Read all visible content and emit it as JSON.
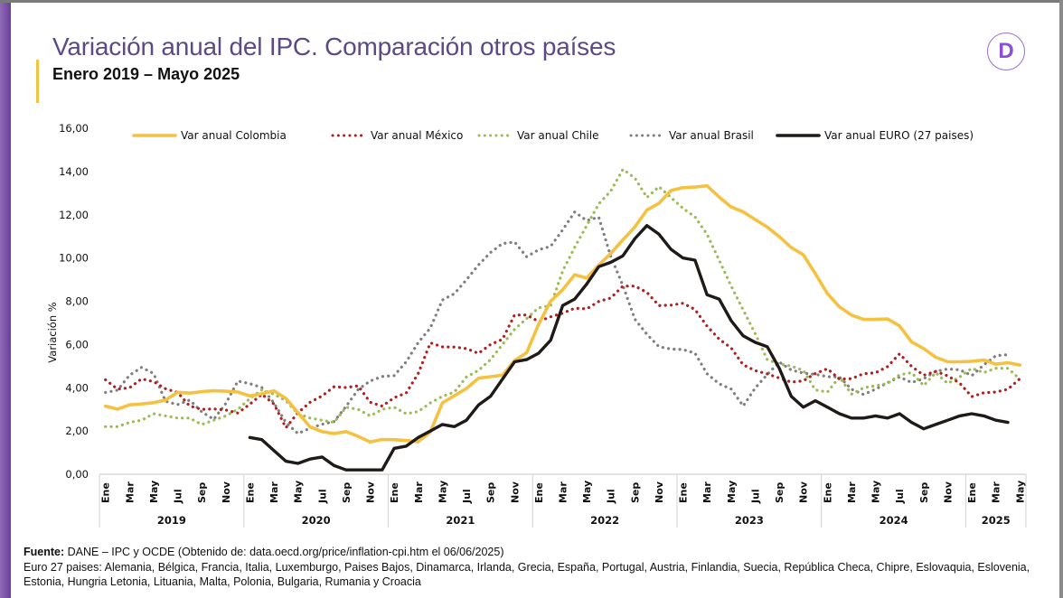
{
  "header": {
    "title": "Variación anual del IPC. Comparación otros países",
    "subtitle": "Enero 2019 – Mayo 2025",
    "logo_icon": "d-logo-icon",
    "logo_letter": "D"
  },
  "footer": {
    "source_label": "Fuente:",
    "source_text": " DANE – IPC y OCDE (Obtenido de: data.oecd.org/price/inflation-cpi.htm el 06/06/2025)",
    "note": "Euro 27 paises: Alemania, Bélgica, Francia, Italia, Luxemburgo, Paises Bajos, Dinamarca, Irlanda, Grecia, España, Portugal, Austria, Finlandia, Suecia, República Checa, Chipre, Eslovaquia, Eslovenia, Estonia, Hungria Letonia, Lituania, Malta, Polonia, Bulgaria, Rumania y Croacia"
  },
  "chart_data": {
    "type": "line",
    "title": "Variación anual del IPC. Comparación otros países",
    "subtitle": "Enero 2019 – Mayo 2025",
    "xlabel": "",
    "ylabel": "Variación %",
    "ylim": [
      0,
      16
    ],
    "yticks": [
      "0,00",
      "2,00",
      "4,00",
      "6,00",
      "8,00",
      "10,00",
      "12,00",
      "14,00",
      "16,00"
    ],
    "grid": false,
    "legend_position": "top",
    "month_tick_labels": [
      "Ene",
      "Mar",
      "May",
      "Jul",
      "Sep",
      "Nov"
    ],
    "years": [
      {
        "label": "2019",
        "months": 12
      },
      {
        "label": "2020",
        "months": 12
      },
      {
        "label": "2021",
        "months": 12
      },
      {
        "label": "2022",
        "months": 12
      },
      {
        "label": "2023",
        "months": 12
      },
      {
        "label": "2024",
        "months": 12
      },
      {
        "label": "2025",
        "months": 5
      }
    ],
    "x_start": "Ene 2019",
    "x_end": "May 2025",
    "series": [
      {
        "name": "Var anual Colombia",
        "color": "#f4c141",
        "style": "solid",
        "start_index": 0,
        "values": [
          3.15,
          3.01,
          3.21,
          3.25,
          3.31,
          3.43,
          3.79,
          3.75,
          3.82,
          3.86,
          3.84,
          3.8,
          3.62,
          3.72,
          3.86,
          3.51,
          2.85,
          2.19,
          1.97,
          1.88,
          1.97,
          1.75,
          1.49,
          1.61,
          1.6,
          1.56,
          1.51,
          1.95,
          3.3,
          3.63,
          3.97,
          4.44,
          4.51,
          4.58,
          5.26,
          5.62,
          6.94,
          8.01,
          8.53,
          9.23,
          9.07,
          9.67,
          10.21,
          10.84,
          11.44,
          12.22,
          12.53,
          13.12,
          13.25,
          13.28,
          13.34,
          12.82,
          12.36,
          12.13,
          11.78,
          11.43,
          10.99,
          10.48,
          10.15,
          9.28,
          8.35,
          7.74,
          7.36,
          7.16,
          7.16,
          7.18,
          6.86,
          6.12,
          5.81,
          5.41,
          5.2,
          5.2,
          5.22,
          5.28,
          5.09,
          5.16,
          5.05
        ]
      },
      {
        "name": "Var anual México",
        "color": "#b0201f",
        "style": "dotted",
        "start_index": 0,
        "values": [
          4.37,
          3.94,
          4.0,
          4.41,
          4.28,
          3.95,
          3.78,
          3.16,
          3.0,
          3.02,
          2.97,
          2.83,
          3.24,
          3.7,
          3.25,
          2.15,
          2.84,
          3.33,
          3.62,
          4.05,
          4.01,
          4.09,
          3.33,
          3.15,
          3.54,
          3.76,
          4.67,
          6.08,
          5.89,
          5.88,
          5.81,
          5.59,
          6.0,
          6.24,
          7.37,
          7.36,
          7.07,
          7.28,
          7.45,
          7.68,
          7.65,
          7.99,
          8.15,
          8.7,
          8.7,
          8.41,
          7.8,
          7.82,
          7.91,
          7.62,
          6.85,
          6.25,
          5.84,
          5.06,
          4.79,
          4.64,
          4.45,
          4.26,
          4.32,
          4.66,
          4.88,
          4.4,
          4.42,
          4.65,
          4.69,
          4.98,
          5.57,
          4.99,
          4.58,
          4.76,
          4.55,
          4.21,
          3.59,
          3.77,
          3.8,
          3.93,
          4.42
        ]
      },
      {
        "name": "Var anual Chile",
        "color": "#9bbb59",
        "style": "dotted",
        "start_index": 0,
        "values": [
          2.2,
          2.2,
          2.4,
          2.5,
          2.8,
          2.7,
          2.6,
          2.6,
          2.3,
          2.5,
          2.7,
          3.0,
          3.5,
          3.9,
          3.7,
          3.4,
          2.8,
          2.6,
          2.5,
          2.4,
          3.1,
          3.0,
          2.7,
          3.0,
          3.1,
          2.8,
          2.9,
          3.3,
          3.6,
          3.8,
          4.5,
          4.8,
          5.3,
          6.0,
          6.7,
          7.2,
          7.7,
          7.8,
          9.4,
          10.5,
          11.5,
          12.5,
          13.1,
          14.1,
          13.7,
          12.8,
          13.3,
          12.8,
          12.3,
          11.9,
          11.1,
          9.9,
          8.7,
          7.6,
          6.5,
          5.3,
          5.1,
          5.0,
          4.8,
          3.9,
          3.8,
          4.5,
          3.7,
          4.0,
          4.1,
          4.2,
          4.6,
          4.7,
          4.1,
          4.7,
          4.2,
          4.5,
          4.9,
          4.7,
          4.9,
          4.9,
          4.4
        ]
      },
      {
        "name": "Var anual Brasil",
        "color": "#7f7f7f",
        "style": "dotted",
        "start_index": 0,
        "values": [
          3.78,
          3.89,
          4.58,
          4.94,
          4.66,
          3.37,
          3.22,
          3.43,
          2.89,
          2.54,
          3.27,
          4.31,
          4.19,
          4.01,
          3.3,
          2.4,
          1.88,
          2.13,
          2.31,
          2.44,
          3.14,
          3.92,
          4.31,
          4.52,
          4.56,
          5.2,
          6.1,
          6.76,
          8.06,
          8.35,
          8.99,
          9.68,
          10.25,
          10.67,
          10.74,
          10.06,
          10.38,
          10.54,
          11.3,
          12.13,
          11.73,
          11.89,
          10.07,
          8.73,
          7.17,
          6.47,
          5.9,
          5.79,
          5.77,
          5.6,
          4.65,
          4.18,
          3.94,
          3.16,
          3.99,
          4.61,
          5.19,
          4.82,
          4.68,
          4.62,
          4.51,
          4.5,
          3.93,
          3.69,
          3.93,
          4.23,
          4.5,
          4.24,
          4.42,
          4.76,
          4.87,
          4.83,
          4.56,
          5.06,
          5.48,
          5.53
        ]
      },
      {
        "name": "Var anual EURO (27 paises)",
        "color": "#1f1a17",
        "style": "solid",
        "start_index": 12,
        "values": [
          1.7,
          1.6,
          1.1,
          0.6,
          0.5,
          0.7,
          0.8,
          0.4,
          0.2,
          0.2,
          0.2,
          0.2,
          1.2,
          1.3,
          1.7,
          2.0,
          2.3,
          2.2,
          2.5,
          3.2,
          3.6,
          4.4,
          5.2,
          5.3,
          5.6,
          6.2,
          7.8,
          8.1,
          8.8,
          9.6,
          9.8,
          10.1,
          10.9,
          11.5,
          11.1,
          10.4,
          10.0,
          9.9,
          8.3,
          8.1,
          7.1,
          6.4,
          6.1,
          5.9,
          4.9,
          3.6,
          3.1,
          3.4,
          3.1,
          2.8,
          2.6,
          2.6,
          2.7,
          2.6,
          2.8,
          2.4,
          2.1,
          2.3,
          2.5,
          2.7,
          2.8,
          2.7,
          2.5,
          2.4
        ]
      }
    ]
  }
}
